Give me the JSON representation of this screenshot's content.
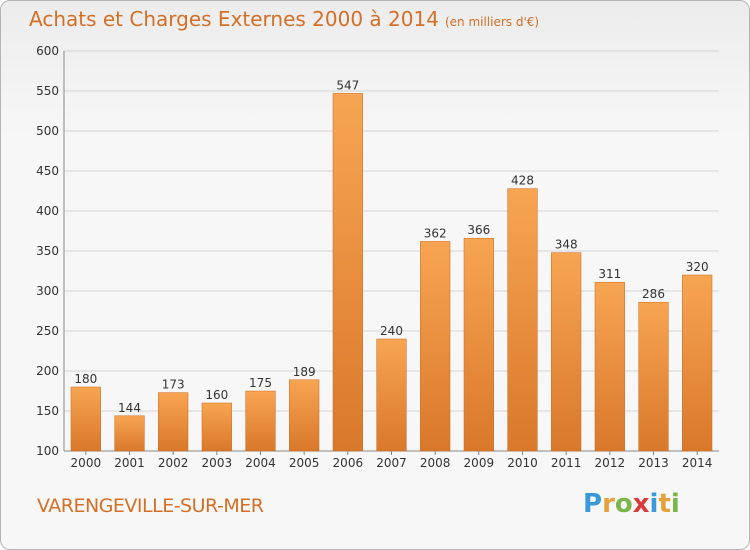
{
  "header": {
    "title": "Achats et Charges Externes 2000 à 2014",
    "unit": "(en milliers d'€)"
  },
  "footer": {
    "town": "VARENGEVILLE-SUR-MER",
    "logo": [
      "P",
      "r",
      "o",
      "x",
      "i",
      "t",
      "i"
    ],
    "logo_colors": [
      "#3a9ad9",
      "#e5a23a",
      "#7ab648",
      "#d93a3a",
      "#3a9ad9",
      "#e5a23a",
      "#7ab648"
    ]
  },
  "colors": {
    "bar_light": "#f7a552",
    "bar_dark": "#d9782a",
    "bar_stroke": "#c96a1f",
    "grid": "#d4d4d4",
    "accent": "#d46f26"
  },
  "chart_data": {
    "type": "bar",
    "title": "Achats et Charges Externes 2000 à 2014",
    "subtitle": "(en milliers d'€)",
    "categories": [
      "2000",
      "2001",
      "2002",
      "2003",
      "2004",
      "2005",
      "2006",
      "2007",
      "2008",
      "2009",
      "2010",
      "2011",
      "2012",
      "2013",
      "2014"
    ],
    "values": [
      180,
      144,
      173,
      160,
      175,
      189,
      547,
      240,
      362,
      366,
      428,
      348,
      311,
      286,
      320
    ],
    "ylim": [
      100,
      600
    ],
    "yticks": [
      100,
      150,
      200,
      250,
      300,
      350,
      400,
      450,
      500,
      550,
      600
    ],
    "grid": true,
    "xlabel": "",
    "ylabel": ""
  }
}
